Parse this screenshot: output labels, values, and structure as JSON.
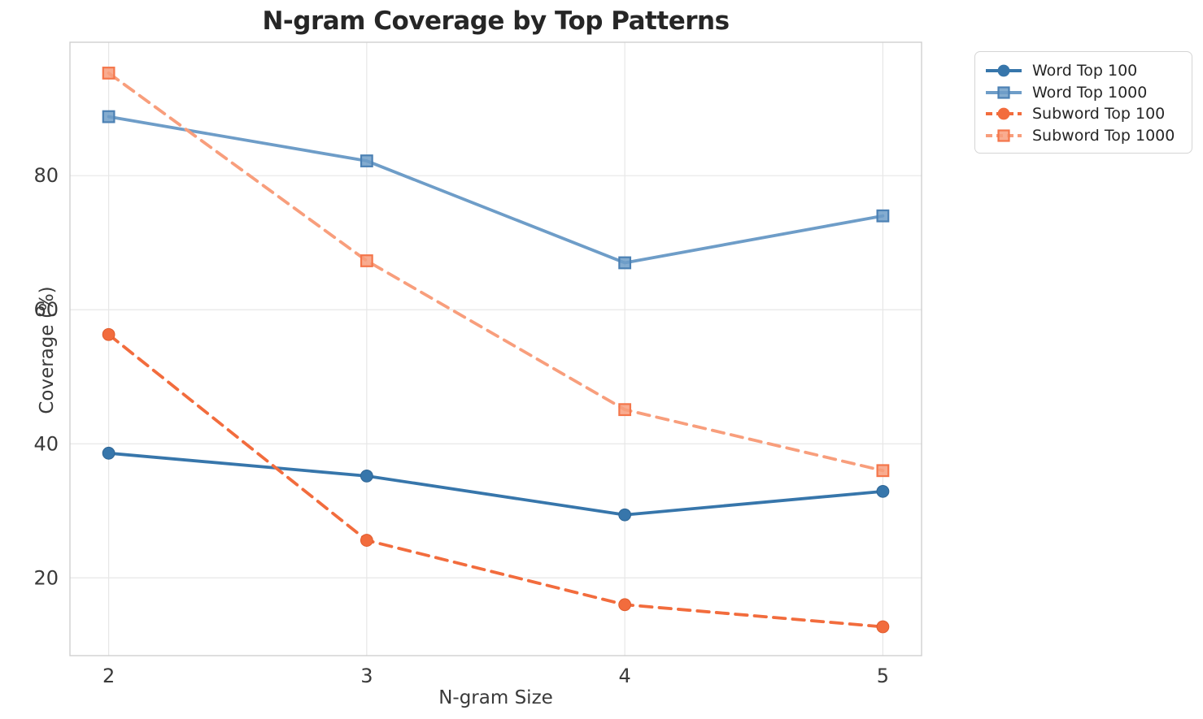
{
  "title": "N-gram Coverage by Top Patterns",
  "chart_data": {
    "type": "line",
    "title": "N-gram Coverage by Top Patterns",
    "xlabel": "N-gram Size",
    "ylabel": "Coverage (%)",
    "x": [
      2,
      3,
      4,
      5
    ],
    "xticks": [
      "2",
      "3",
      "4",
      "5"
    ],
    "yticks": [
      20,
      40,
      60,
      80
    ],
    "xlim": [
      1.85,
      5.15
    ],
    "ylim": [
      8.4,
      99.9
    ],
    "grid": true,
    "legend_position": "outside-top-right",
    "series": [
      {
        "name": "Word Top 100",
        "values": [
          38.6,
          35.2,
          29.4,
          32.9
        ],
        "color": "#3776AB",
        "marker": "circle",
        "marker_edge": "#2F6695",
        "line_style": "solid"
      },
      {
        "name": "Word Top 1000",
        "values": [
          88.8,
          82.2,
          67.0,
          74.0
        ],
        "color": "#6E9DC8",
        "marker": "square",
        "marker_edge": "#4C81B4",
        "line_style": "solid"
      },
      {
        "name": "Subword Top 100",
        "values": [
          56.3,
          25.6,
          16.0,
          12.7
        ],
        "color": "#F26C3D",
        "marker": "circle",
        "marker_edge": "#E05C2E",
        "line_style": "dashed"
      },
      {
        "name": "Subword Top 1000",
        "values": [
          95.3,
          67.3,
          45.1,
          36.0
        ],
        "color": "#F89E7C",
        "marker": "square",
        "marker_edge": "#F4764B",
        "line_style": "dashed"
      }
    ]
  }
}
